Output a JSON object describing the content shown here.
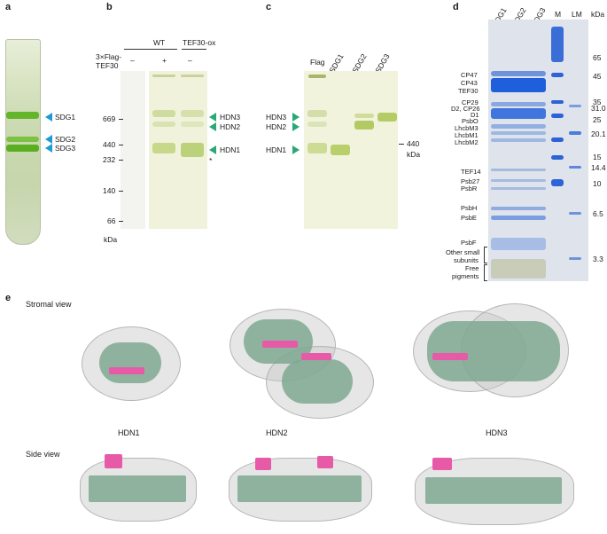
{
  "panels": {
    "a": "a",
    "b": "b",
    "c": "c",
    "d": "d",
    "e": "e"
  },
  "panel_a": {
    "bands": [
      "SDG1",
      "SDG2",
      "SDG3"
    ]
  },
  "panel_b": {
    "col_wt": "WT",
    "col_tef": "TEF30-ox",
    "row_label": "3×Flag-TEF30",
    "lanes": [
      "–",
      "+",
      "–"
    ],
    "markers": [
      "669",
      "440",
      "232",
      "140",
      "66"
    ],
    "unit": "kDa",
    "asterisk": "*",
    "right_labels": [
      "HDN3",
      "HDN2",
      "HDN1"
    ]
  },
  "panel_c": {
    "lanes": [
      "Flag",
      "SDG1",
      "SDG2",
      "SDG3"
    ],
    "left_labels": [
      "HDN3",
      "HDN2",
      "HDN1"
    ],
    "marker": "440",
    "unit": "kDa"
  },
  "panel_d": {
    "lanes": [
      "SDG1",
      "SDG2",
      "SDG3",
      "M",
      "LM"
    ],
    "unit": "kDa",
    "left_labels": [
      "CP47",
      "CP43",
      "TEF30",
      "CP29",
      "D2, CP26",
      "D1",
      "PsbO",
      "LhcbM3",
      "LhcbM1",
      "LhcbM2",
      "TEF14",
      "Psb27",
      "PsbR",
      "PsbH",
      "PsbE",
      "PsbF",
      "Other small",
      "subunits",
      "Free",
      "pigments"
    ],
    "right_markers": [
      "65",
      "45",
      "35",
      "31.0",
      "25",
      "20.1",
      "15",
      "14.4",
      "10",
      "6.5",
      "3.3"
    ]
  },
  "panel_e": {
    "stromal_view": "Stromal view",
    "side_view": "Side view",
    "labels": [
      "HDN1",
      "HDN2",
      "HDN3"
    ]
  }
}
